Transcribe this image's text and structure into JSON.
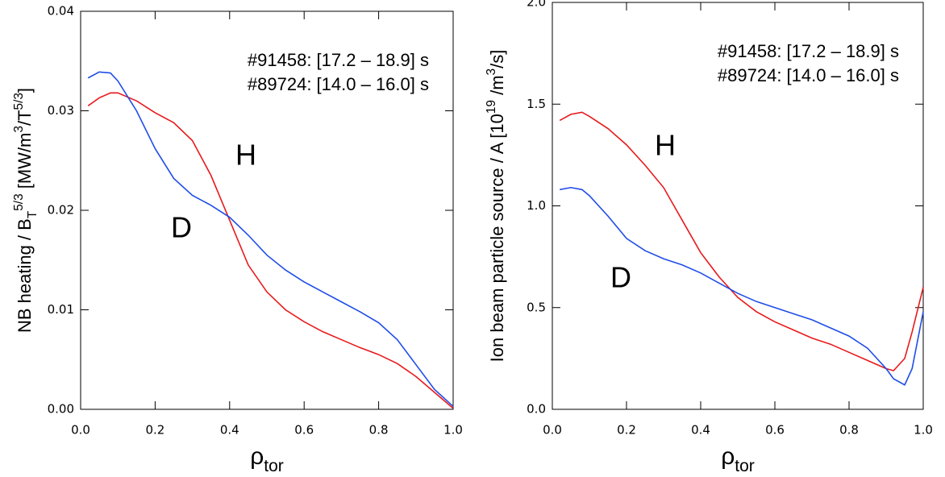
{
  "chart_data": [
    {
      "type": "line",
      "ylabel": [
        [
          "NB heating / B",
          "normal"
        ],
        [
          "T",
          "sub"
        ],
        [
          "5/3",
          "sup"
        ],
        [
          " [MW/m",
          "normal"
        ],
        [
          "3",
          "sup"
        ],
        [
          "/T",
          "normal"
        ],
        [
          "5/3",
          "sup"
        ],
        [
          "]",
          "normal"
        ]
      ],
      "xlabel": [
        [
          "ρ",
          "normal"
        ],
        [
          "tor",
          "sub"
        ]
      ],
      "xlim": [
        0,
        1
      ],
      "ylim": [
        0,
        0.04
      ],
      "xticks": [
        {
          "value": 0,
          "label": "0.0"
        },
        {
          "value": 0.2,
          "label": "0.2"
        },
        {
          "value": 0.4,
          "label": "0.4"
        },
        {
          "value": 0.6,
          "label": "0.6"
        },
        {
          "value": 0.8,
          "label": "0.8"
        },
        {
          "value": 1,
          "label": "1.0"
        }
      ],
      "yticks": [
        {
          "value": 0,
          "label": "0.00"
        },
        {
          "value": 0.01,
          "label": "0.01"
        },
        {
          "value": 0.02,
          "label": "0.02"
        },
        {
          "value": 0.03,
          "label": "0.03"
        },
        {
          "value": 0.04,
          "label": "0.04"
        }
      ],
      "x": [
        0.02,
        0.05,
        0.08,
        0.1,
        0.15,
        0.2,
        0.25,
        0.3,
        0.35,
        0.4,
        0.45,
        0.5,
        0.55,
        0.6,
        0.65,
        0.7,
        0.75,
        0.8,
        0.85,
        0.9,
        0.95,
        1.0
      ],
      "series": [
        {
          "name": "#91458: [17.2 – 18.9] s",
          "color": "#e8191c",
          "values": [
            0.0305,
            0.0313,
            0.0318,
            0.0318,
            0.031,
            0.0298,
            0.0288,
            0.027,
            0.0235,
            0.019,
            0.0145,
            0.0118,
            0.01,
            0.0088,
            0.0078,
            0.007,
            0.0062,
            0.0055,
            0.0046,
            0.0033,
            0.0017,
            0.0001
          ]
        },
        {
          "name": "#89724: [14.0 – 16.0] s",
          "color": "#1f4de8",
          "values": [
            0.0333,
            0.0339,
            0.0338,
            0.033,
            0.03,
            0.0262,
            0.0232,
            0.0215,
            0.0205,
            0.0193,
            0.0175,
            0.0155,
            0.014,
            0.0128,
            0.0118,
            0.0108,
            0.0098,
            0.0087,
            0.007,
            0.0045,
            0.002,
            0.0003
          ]
        }
      ],
      "annotations": [
        "H",
        "D"
      ]
    },
    {
      "type": "line",
      "ylabel": [
        [
          "Ion beam particle source / A  [10",
          "normal"
        ],
        [
          "19",
          "sup"
        ],
        [
          " /m",
          "normal"
        ],
        [
          "3",
          "sup"
        ],
        [
          "/s]",
          "normal"
        ]
      ],
      "xlabel": [
        [
          "ρ",
          "normal"
        ],
        [
          "tor",
          "sub"
        ]
      ],
      "xlim": [
        0,
        1
      ],
      "ylim": [
        0,
        2
      ],
      "xticks": [
        {
          "value": 0,
          "label": "0.0"
        },
        {
          "value": 0.2,
          "label": "0.2"
        },
        {
          "value": 0.4,
          "label": "0.4"
        },
        {
          "value": 0.6,
          "label": "0.6"
        },
        {
          "value": 0.8,
          "label": "0.8"
        },
        {
          "value": 1,
          "label": "1.0"
        }
      ],
      "yticks": [
        {
          "value": 0,
          "label": "0.0"
        },
        {
          "value": 0.5,
          "label": "0.5"
        },
        {
          "value": 1,
          "label": "1.0"
        },
        {
          "value": 1.5,
          "label": "1.5"
        },
        {
          "value": 2,
          "label": "2.0"
        }
      ],
      "x": [
        0.02,
        0.05,
        0.08,
        0.1,
        0.15,
        0.2,
        0.25,
        0.3,
        0.35,
        0.4,
        0.45,
        0.5,
        0.55,
        0.6,
        0.65,
        0.7,
        0.75,
        0.8,
        0.85,
        0.9,
        0.92,
        0.95,
        0.97,
        1.0
      ],
      "series": [
        {
          "name": "#91458: [17.2 – 18.9] s",
          "color": "#e8191c",
          "values": [
            1.42,
            1.45,
            1.46,
            1.44,
            1.38,
            1.3,
            1.2,
            1.09,
            0.93,
            0.77,
            0.65,
            0.55,
            0.48,
            0.43,
            0.39,
            0.35,
            0.32,
            0.28,
            0.24,
            0.2,
            0.19,
            0.25,
            0.38,
            0.6
          ]
        },
        {
          "name": "#89724: [14.0 – 16.0] s",
          "color": "#1f4de8",
          "values": [
            1.08,
            1.09,
            1.08,
            1.05,
            0.95,
            0.84,
            0.78,
            0.74,
            0.71,
            0.67,
            0.62,
            0.57,
            0.53,
            0.5,
            0.47,
            0.44,
            0.4,
            0.36,
            0.3,
            0.2,
            0.15,
            0.12,
            0.2,
            0.48
          ]
        }
      ],
      "annotations": [
        "H",
        "D"
      ]
    }
  ]
}
